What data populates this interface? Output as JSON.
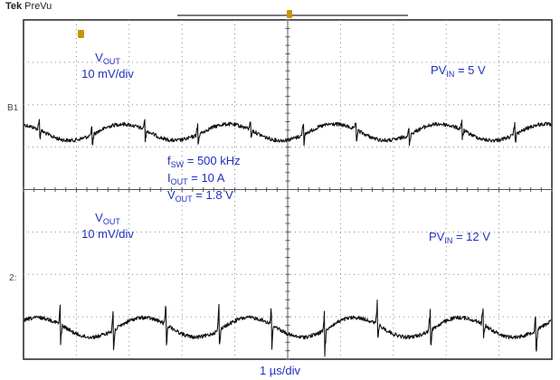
{
  "scope_header": {
    "brand": "Tek",
    "state": "PreVu"
  },
  "time_scale": "1 µs/div",
  "conditions": {
    "fsw": {
      "sym": "f",
      "sub": "SW",
      "value": " = 500 kHz"
    },
    "iout": {
      "sym": "I",
      "sub": "OUT",
      "value": " = 10 A"
    },
    "vout": {
      "sym": "V",
      "sub": "OUT",
      "value": " = 1.8 V"
    }
  },
  "channels": [
    {
      "marker": "1",
      "signal": {
        "sym": "V",
        "sub": "OUT"
      },
      "scale": "10 mV/div",
      "input": {
        "sym": "PV",
        "sub": "IN",
        "value": " = 5 V"
      }
    },
    {
      "marker": "2",
      "signal": {
        "sym": "V",
        "sub": "OUT"
      },
      "scale": "10 mV/div",
      "input": {
        "sym": "PV",
        "sub": "IN",
        "value": " = 12 V"
      }
    }
  ],
  "colors": {
    "trace": "#111111",
    "grid": "#8a8a8a",
    "label": "#1f2fbf",
    "trigger": "#c8960a"
  },
  "chart_data": {
    "type": "line",
    "grid": {
      "divisions_x": 10,
      "divisions_y": 8
    },
    "series": [
      {
        "ripple_period_div": 2.0,
        "ripple_amplitude_div": 0.25,
        "spike_amplitude_div": 0.3
      },
      {
        "ripple_period_div": 2.0,
        "ripple_amplitude_div": 0.3,
        "spike_amplitude_div": 0.55
      }
    ]
  }
}
